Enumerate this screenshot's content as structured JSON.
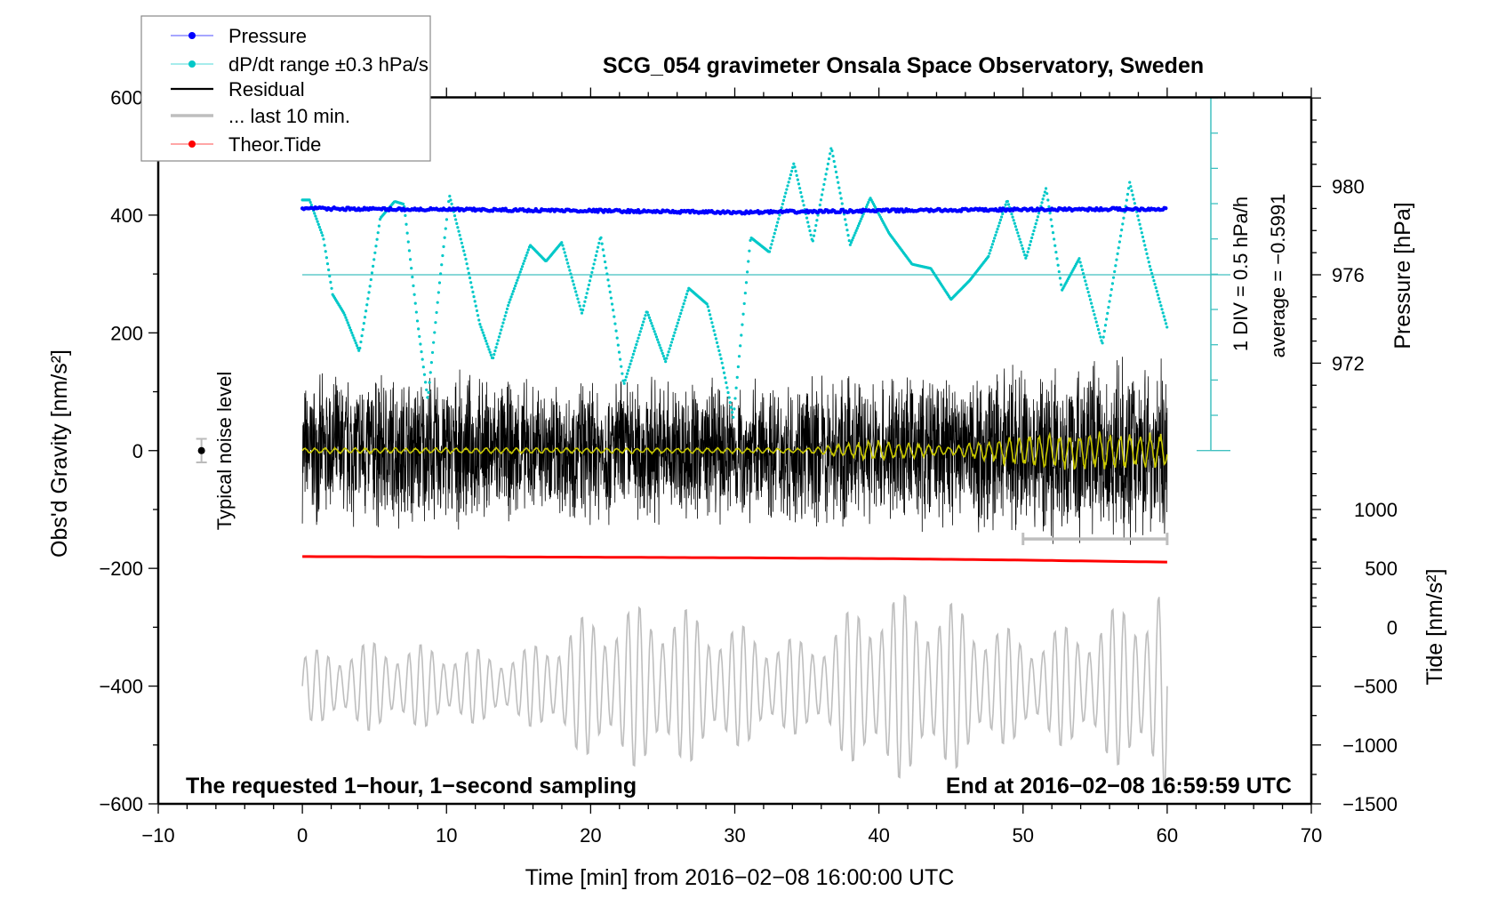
{
  "chart_data": {
    "type": "line",
    "title": "SCG_054 gravimeter Onsala Space Observatory, Sweden",
    "xlabel": "Time [min] from 2016−02−08 16:00:00 UTC",
    "ylabel_left": "Obs'd Gravity [nm/s²]",
    "ylabel_right_pressure": "Pressure [hPa]",
    "ylabel_right_tide": "Tide [nm/s²]",
    "xlim": [
      -10,
      70
    ],
    "ylim": [
      -600,
      600
    ],
    "pressure_lim": [
      960.1,
      984.1
    ],
    "x_ticks": [
      "−10",
      "0",
      "10",
      "20",
      "30",
      "40",
      "50",
      "60",
      "70"
    ],
    "x_tick_values": [
      -10,
      0,
      10,
      20,
      30,
      40,
      50,
      60,
      70
    ],
    "y_ticks": [
      "−600",
      "−400",
      "−200",
      "0",
      "200",
      "400",
      "600"
    ],
    "y_tick_values": [
      -600,
      -400,
      -200,
      0,
      200,
      400,
      600
    ],
    "pressure_ticks": [
      "972",
      "976",
      "980"
    ],
    "pressure_tick_values": [
      972,
      976,
      980
    ],
    "tide_ticks": [
      "−1500",
      "−1000",
      "−500",
      "0",
      "500",
      "1000"
    ],
    "tide_tick_values": [
      -1500,
      -1000,
      -500,
      0,
      500,
      1000
    ],
    "legend": {
      "placement": "top-left",
      "items": [
        {
          "label": "Pressure",
          "color": "#0000ff",
          "marker": "dot"
        },
        {
          "label": "dP/dt range ±0.3 hPa/s",
          "color": "#00c8c8",
          "marker": "dot"
        },
        {
          "label": "Residual",
          "color": "#000000",
          "marker": "line"
        },
        {
          "label": "... last 10 min.",
          "color": "#bebebe",
          "marker": "line"
        },
        {
          "label": "Theor.Tide",
          "color": "#ff0000",
          "marker": "dot"
        }
      ]
    },
    "annotations": {
      "bottom_left": "The requested 1−hour, 1−second sampling",
      "bottom_right": "End at 2016−02−08 16:59:59 UTC",
      "div_scale": "1 DIV = 0.5 hPa/h",
      "average": "average = −0.5991",
      "noise_label": "Typical noise level"
    },
    "noise_level": {
      "x": -7,
      "y": 0,
      "error": 20
    },
    "last10_bar": {
      "x_range": [
        50,
        60
      ],
      "y": -150
    },
    "series": {
      "pressure_hpa": {
        "x": [
          0,
          10,
          20,
          30,
          40,
          50,
          60
        ],
        "values": [
          979.0,
          978.95,
          978.9,
          978.82,
          978.9,
          978.95,
          978.98
        ]
      },
      "dpdt_hpa_per_h": {
        "center_pressure": 976,
        "x": [
          0,
          0.5,
          1.45,
          2.1,
          2.9,
          3.95,
          4.7,
          5.4,
          6.4,
          7.05,
          8.0,
          8.7,
          9.5,
          10.2,
          11.3,
          12.3,
          13.2,
          14.3,
          15.8,
          16.9,
          18.0,
          19.4,
          20.7,
          21.6,
          22.3,
          23.9,
          25.2,
          26.8,
          28.1,
          29.1,
          29.9,
          31.1,
          32.4,
          34.1,
          35.4,
          36.7,
          38.0,
          39.4,
          40.7,
          42.3,
          43.6,
          45.0,
          46.3,
          47.6,
          48.9,
          50.2,
          51.6,
          52.7,
          53.9,
          55.5,
          57.4,
          58.8,
          60.0
        ],
        "values": [
          1.06,
          1.06,
          0.53,
          -0.28,
          -0.55,
          -1.09,
          -0.15,
          0.8,
          1.04,
          1.0,
          -0.69,
          -1.77,
          -0.15,
          1.13,
          0.26,
          -0.69,
          -1.2,
          -0.42,
          0.42,
          0.19,
          0.46,
          -0.55,
          0.55,
          -0.55,
          -1.56,
          -0.51,
          -1.23,
          -0.19,
          -0.42,
          -1.23,
          -2.03,
          0.53,
          0.32,
          1.58,
          0.46,
          1.81,
          0.42,
          1.09,
          0.59,
          0.15,
          0.09,
          -0.35,
          -0.08,
          0.26,
          1.06,
          0.23,
          1.23,
          -0.22,
          0.23,
          -0.98,
          1.31,
          0.12,
          -0.75
        ]
      },
      "residual_envelope": {
        "x": [
          0,
          5,
          10,
          15,
          20,
          25,
          30,
          35,
          40,
          45,
          50,
          55,
          60
        ],
        "values": [
          130,
          150,
          140,
          130,
          135,
          140,
          130,
          135,
          145,
          150,
          165,
          170,
          160
        ]
      },
      "residual_smoothed_envelope": {
        "x": [
          0,
          5,
          10,
          15,
          20,
          25,
          30,
          35,
          40,
          45,
          50,
          55,
          60
        ],
        "values": [
          5,
          5,
          5,
          5,
          5,
          5,
          5,
          5,
          20,
          8,
          30,
          35,
          30
        ]
      },
      "last10min_envelope": {
        "center": -400,
        "x": [
          0,
          5,
          10,
          15,
          20,
          25,
          30,
          35,
          40,
          45,
          50,
          55,
          60
        ],
        "values": [
          60,
          80,
          70,
          60,
          130,
          150,
          110,
          80,
          170,
          150,
          90,
          120,
          190
        ]
      },
      "theor_tide": {
        "x": [
          0,
          10,
          20,
          30,
          40,
          50,
          60
        ],
        "values": [
          600,
          598,
          595,
          590,
          583,
          570,
          553
        ]
      }
    }
  }
}
